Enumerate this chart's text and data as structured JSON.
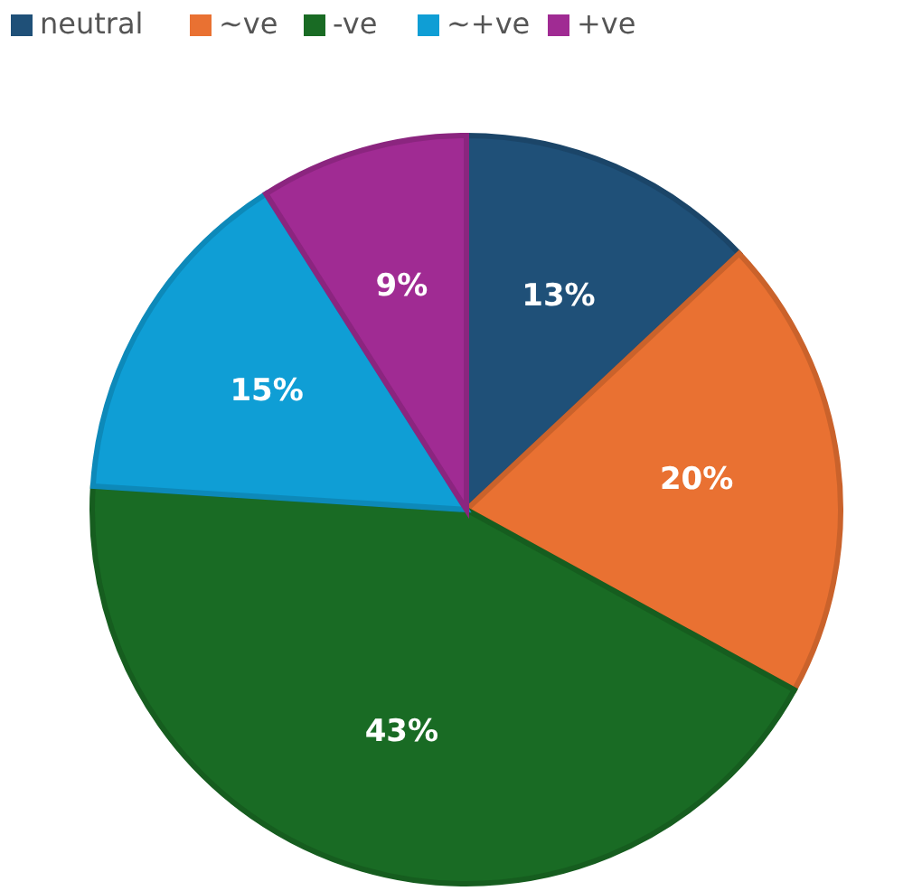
{
  "chart_data": {
    "type": "pie",
    "categories": [
      "neutral",
      "~ve",
      "-ve",
      "~+ve",
      "+ve"
    ],
    "values": [
      13,
      20,
      43,
      15,
      9
    ],
    "colors": [
      "#1f5078",
      "#e97132",
      "#196b24",
      "#0f9ed5",
      "#a02b93"
    ],
    "value_labels": [
      "13%",
      "20%",
      "43%",
      "15%",
      "9%"
    ],
    "legend": "top"
  }
}
